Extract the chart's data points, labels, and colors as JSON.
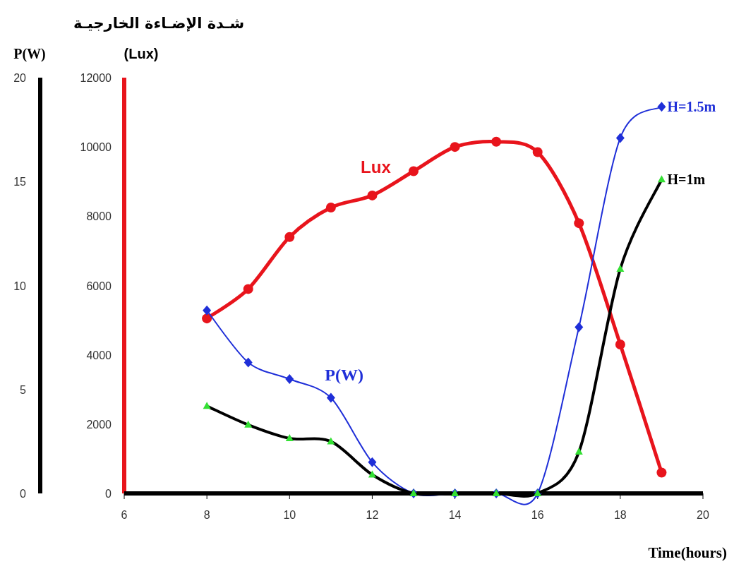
{
  "chart_data": {
    "type": "line",
    "title": "شـدة الإضـاءة الخارجيـة",
    "xlabel": "Time(hours)",
    "ylabel": "P(W)",
    "y2label": "(Lux)",
    "x": [
      8,
      9,
      10,
      11,
      12,
      13,
      14,
      15,
      16,
      17,
      18,
      19
    ],
    "series": [
      {
        "name": "Lux",
        "color": "#e8141c",
        "axis": "y2",
        "marker": "circle",
        "values": [
          5050,
          5900,
          7400,
          8250,
          8600,
          9300,
          10000,
          10150,
          9850,
          7800,
          4300,
          600
        ]
      },
      {
        "name": "H=1.5m",
        "color": "#1f2fd8",
        "marker": "diamond",
        "values": [
          8.8,
          6.3,
          5.5,
          4.6,
          1.5,
          0,
          0,
          0,
          0,
          8,
          17.1,
          18.6
        ]
      },
      {
        "name": "H=1m",
        "color": "#000000",
        "marker": "triangle",
        "values": [
          4.2,
          3.3,
          2.65,
          2.5,
          0.9,
          0,
          0,
          0,
          0,
          2,
          10.8,
          15.1
        ]
      }
    ],
    "annotations": [
      "P(W)"
    ],
    "xlim": [
      6,
      20
    ],
    "xticks": [
      6,
      8,
      10,
      12,
      14,
      16,
      18,
      20
    ],
    "ylim": [
      0,
      20
    ],
    "yticks": [
      0,
      5,
      10,
      15,
      20
    ],
    "y2lim": [
      0,
      12000
    ],
    "y2ticks": [
      0,
      2000,
      4000,
      6000,
      8000,
      10000,
      12000
    ],
    "line_style": "solid",
    "grid": false
  }
}
